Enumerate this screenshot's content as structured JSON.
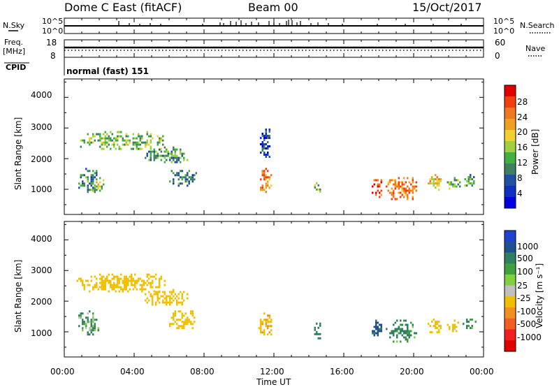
{
  "header": {
    "title": "Dome C East (fitACF)",
    "beam": "Beam 00",
    "date": "15/Oct/2017"
  },
  "nsky_panel": {
    "left_label": "N.Sky",
    "right_label": "N.Search",
    "left_ticks": [
      "10^5",
      "10^0"
    ],
    "right_ticks": [
      "10^5",
      "10^0"
    ]
  },
  "freq_panel": {
    "left_label_1": "Freq.",
    "left_label_2": "[MHz]",
    "right_label": "Nave",
    "left_ticks": [
      "18",
      "8"
    ],
    "right_ticks": [
      "60",
      "0"
    ]
  },
  "cpid": {
    "label": "CPID",
    "mode_text": "normal (fast) 151"
  },
  "power_panel": {
    "ylabel": "Slant Range [km]",
    "yticks": [
      "4000",
      "3000",
      "2000",
      "1000"
    ]
  },
  "velocity_panel": {
    "ylabel": "Slant Range [km]",
    "yticks": [
      "4000",
      "3000",
      "2000",
      "1000"
    ]
  },
  "power_colorbar": {
    "label": "Power [dB]",
    "ticks": [
      "28",
      "24",
      "20",
      "16",
      "12",
      "8",
      "4"
    ],
    "colors": [
      "#e00000",
      "#f04010",
      "#f07820",
      "#f0a020",
      "#f0d030",
      "#a0d040",
      "#40b040",
      "#408060",
      "#2050a0",
      "#1030c0",
      "#0000e0"
    ]
  },
  "velocity_colorbar": {
    "label": "Velocity [m s⁻¹]",
    "ticks": [
      "1000",
      "500",
      "100",
      "25",
      "-25",
      "-100",
      "-500",
      "-1000"
    ],
    "colors": [
      "#2040d0",
      "#205090",
      "#308060",
      "#40a040",
      "#80d040",
      "#c0c0c0",
      "#f0c000",
      "#f09020",
      "#f06020",
      "#f02020",
      "#e00000"
    ]
  },
  "time_axis": {
    "label": "Time UT",
    "ticks": [
      "00:00",
      "04:00",
      "08:00",
      "12:00",
      "16:00",
      "20:00",
      "00:00"
    ]
  },
  "chart_data": [
    {
      "type": "heatmap",
      "title": "Power [dB]",
      "xlabel": "Time UT",
      "ylabel": "Slant Range [km]",
      "xlim": [
        0,
        24
      ],
      "ylim": [
        180,
        4600
      ],
      "zlim": [
        0,
        32
      ],
      "regions": [
        {
          "t": [
            0.7,
            5.9
          ],
          "range": [
            2300,
            2900
          ],
          "value": 14
        },
        {
          "t": [
            4.5,
            7.2
          ],
          "range": [
            1900,
            2400
          ],
          "value": 12
        },
        {
          "t": [
            0.8,
            2.0
          ],
          "range": [
            900,
            1700
          ],
          "value": 10
        },
        {
          "t": [
            1.6,
            2.3
          ],
          "range": [
            900,
            1400
          ],
          "value": 16
        },
        {
          "t": [
            6.0,
            7.6
          ],
          "range": [
            1100,
            1700
          ],
          "value": 10
        },
        {
          "t": [
            11.1,
            11.9
          ],
          "range": [
            900,
            1700
          ],
          "value": 24
        },
        {
          "t": [
            11.2,
            11.8
          ],
          "range": [
            2000,
            3050
          ],
          "value": 6
        },
        {
          "t": [
            14.2,
            14.7
          ],
          "range": [
            800,
            1300
          ],
          "value": 14
        },
        {
          "t": [
            17.6,
            18.2
          ],
          "range": [
            700,
            1400
          ],
          "value": 28
        },
        {
          "t": [
            18.4,
            20.2
          ],
          "range": [
            700,
            1400
          ],
          "value": 24
        },
        {
          "t": [
            20.8,
            21.6
          ],
          "range": [
            1000,
            1500
          ],
          "value": 20
        },
        {
          "t": [
            21.9,
            22.6
          ],
          "range": [
            1000,
            1400
          ],
          "value": 14
        },
        {
          "t": [
            22.8,
            23.6
          ],
          "range": [
            1100,
            1500
          ],
          "value": 12
        }
      ]
    },
    {
      "type": "heatmap",
      "title": "Velocity [m s⁻¹]",
      "xlabel": "Time UT",
      "ylabel": "Slant Range [km]",
      "xlim": [
        0,
        24
      ],
      "ylim": [
        180,
        4600
      ],
      "zlim": [
        -1000,
        1000
      ],
      "regions": [
        {
          "t": [
            0.7,
            5.9
          ],
          "range": [
            2300,
            2900
          ],
          "value": -300
        },
        {
          "t": [
            4.5,
            7.2
          ],
          "range": [
            1900,
            2400
          ],
          "value": -250
        },
        {
          "t": [
            0.8,
            2.0
          ],
          "range": [
            900,
            1700
          ],
          "value": 80
        },
        {
          "t": [
            6.0,
            7.6
          ],
          "range": [
            1100,
            1700
          ],
          "value": -300
        },
        {
          "t": [
            11.1,
            11.9
          ],
          "range": [
            900,
            1700
          ],
          "value": -400
        },
        {
          "t": [
            14.2,
            14.7
          ],
          "range": [
            800,
            1300
          ],
          "value": 300
        },
        {
          "t": [
            17.6,
            18.2
          ],
          "range": [
            700,
            1400
          ],
          "value": 600
        },
        {
          "t": [
            18.4,
            20.2
          ],
          "range": [
            700,
            1400
          ],
          "value": 150
        },
        {
          "t": [
            20.8,
            21.6
          ],
          "range": [
            1000,
            1500
          ],
          "value": -350
        },
        {
          "t": [
            21.9,
            22.6
          ],
          "range": [
            1000,
            1400
          ],
          "value": -200
        },
        {
          "t": [
            22.8,
            23.6
          ],
          "range": [
            1100,
            1500
          ],
          "value": 120
        }
      ]
    }
  ]
}
